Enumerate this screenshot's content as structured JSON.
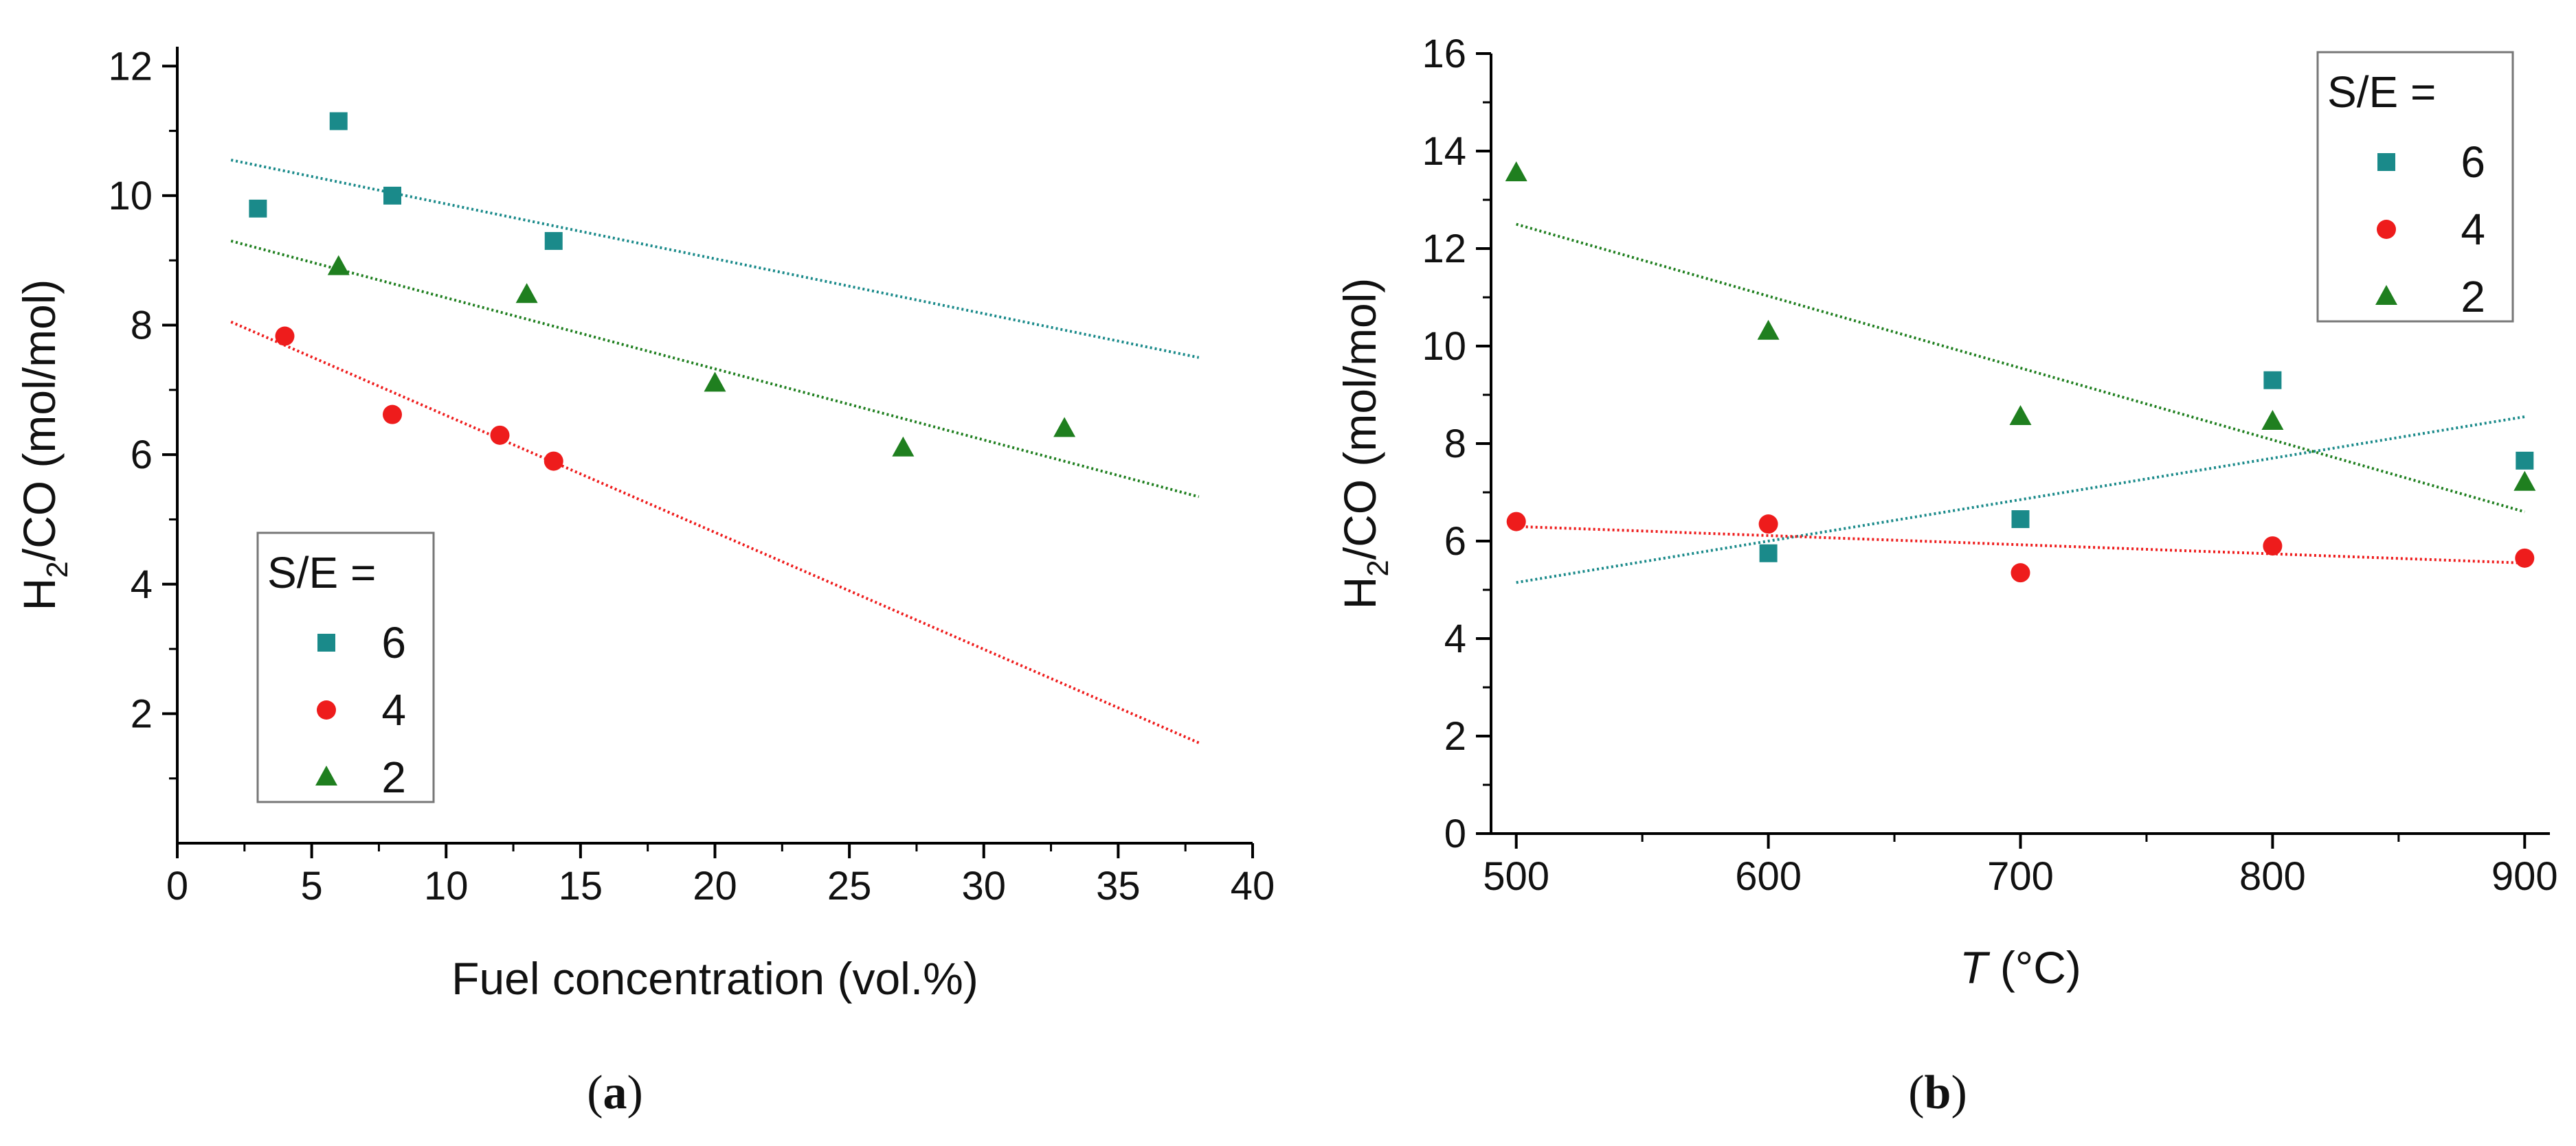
{
  "chart_data": [
    {
      "id": "a",
      "type": "scatter",
      "caption": {
        "open": "(",
        "letter": "a",
        "close": ")"
      },
      "title": "",
      "xlabel": "Fuel concentration (vol.%)",
      "ylabel": {
        "main": "H",
        "sub": "2",
        "rest": "/CO (mol/mol)"
      },
      "xlim": [
        0,
        40
      ],
      "ylim": [
        0,
        12.3
      ],
      "xticks": [
        0,
        5,
        10,
        15,
        20,
        25,
        30,
        35,
        40
      ],
      "yticks": [
        2,
        4,
        6,
        8,
        10,
        12
      ],
      "legend": {
        "title": "S/E =",
        "placement": "bottom-left"
      },
      "series": [
        {
          "name": "6",
          "marker": "square",
          "color": "#1a8a8a",
          "x": [
            3,
            6,
            8,
            14
          ],
          "y": [
            9.8,
            11.15,
            10.0,
            9.3
          ],
          "trend": {
            "x": [
              2,
              38
            ],
            "y": [
              10.55,
              7.5
            ]
          }
        },
        {
          "name": "4",
          "marker": "circle",
          "color": "#ee1c1c",
          "x": [
            4,
            8,
            12,
            14
          ],
          "y": [
            7.83,
            6.62,
            6.3,
            5.9
          ],
          "trend": {
            "x": [
              2,
              38
            ],
            "y": [
              8.05,
              1.55
            ]
          }
        },
        {
          "name": "2",
          "marker": "triangle",
          "color": "#1f7f1f",
          "x": [
            6,
            13,
            20,
            27,
            33
          ],
          "y": [
            8.9,
            8.47,
            7.1,
            6.1,
            6.4
          ],
          "trend": {
            "x": [
              2,
              38
            ],
            "y": [
              9.3,
              5.35
            ]
          }
        }
      ]
    },
    {
      "id": "b",
      "type": "scatter",
      "caption": {
        "open": "(",
        "letter": "b",
        "close": ")"
      },
      "title": "",
      "xlabel": {
        "italic": "T",
        "rest": " (°C)"
      },
      "ylabel": {
        "main": "H",
        "sub": "2",
        "rest": "/CO (mol/mol)"
      },
      "xlim": [
        490,
        910
      ],
      "ylim": [
        0,
        16
      ],
      "xticks": [
        500,
        600,
        700,
        800,
        900
      ],
      "yticks": [
        0,
        2,
        4,
        6,
        8,
        10,
        12,
        14,
        16
      ],
      "legend": {
        "title": "S/E =",
        "placement": "top-right"
      },
      "series": [
        {
          "name": "6",
          "marker": "square",
          "color": "#1a8a8a",
          "x": [
            600,
            700,
            800,
            900
          ],
          "y": [
            5.75,
            6.45,
            9.3,
            7.65
          ],
          "trend": {
            "x": [
              500,
              900
            ],
            "y": [
              5.15,
              8.55
            ]
          }
        },
        {
          "name": "4",
          "marker": "circle",
          "color": "#ee1c1c",
          "x": [
            500,
            600,
            700,
            800,
            900
          ],
          "y": [
            6.4,
            6.35,
            5.35,
            5.9,
            5.65
          ],
          "trend": {
            "x": [
              500,
              900
            ],
            "y": [
              6.3,
              5.55
            ]
          }
        },
        {
          "name": "2",
          "marker": "triangle",
          "color": "#1f7f1f",
          "x": [
            500,
            600,
            700,
            800,
            900
          ],
          "y": [
            13.55,
            10.3,
            8.55,
            8.45,
            7.2
          ],
          "trend": {
            "x": [
              500,
              900
            ],
            "y": [
              12.5,
              6.6
            ]
          }
        }
      ]
    }
  ]
}
